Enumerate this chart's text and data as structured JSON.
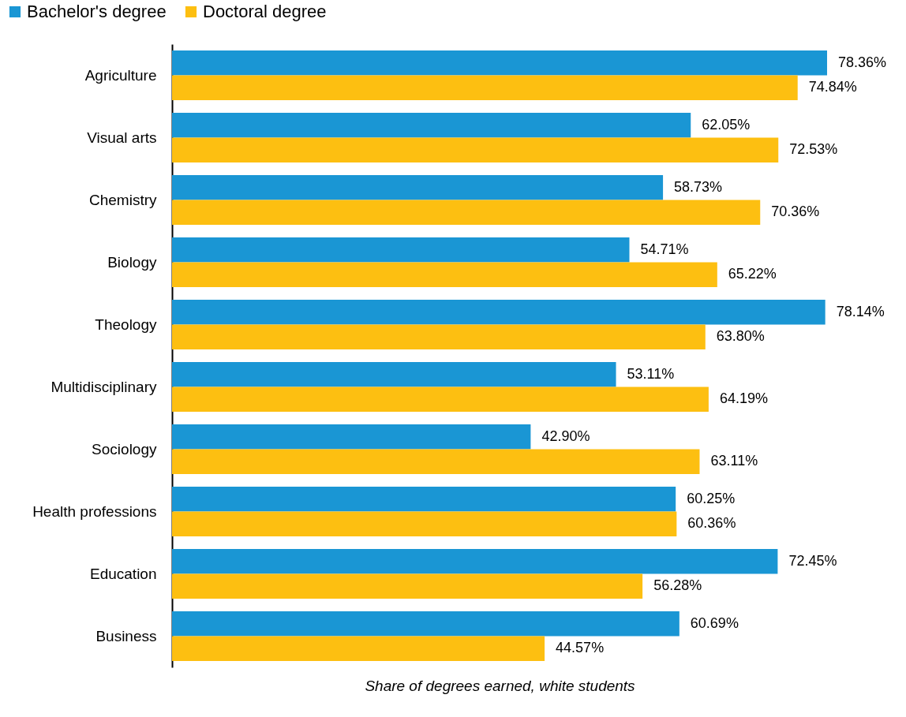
{
  "chart_data": {
    "type": "bar",
    "orientation": "horizontal",
    "xlabel": "Share of degrees earned, white students",
    "categories": [
      "Agriculture",
      "Visual arts",
      "Chemistry",
      "Biology",
      "Theology",
      "Multidisciplinary",
      "Sociology",
      "Health professions",
      "Education",
      "Business"
    ],
    "series": [
      {
        "name": "Bachelor's degree",
        "color": "#1a96d4",
        "values": [
          78.36,
          62.05,
          58.73,
          54.71,
          78.14,
          53.11,
          42.9,
          60.25,
          72.45,
          60.69
        ],
        "value_labels": [
          "78.36%",
          "62.05%",
          "58.73%",
          "54.71%",
          "78.14%",
          "53.11%",
          "42.90%",
          "60.25%",
          "72.45%",
          "60.69%"
        ]
      },
      {
        "name": "Doctoral degree",
        "color": "#fdbf11",
        "values": [
          74.84,
          72.53,
          70.36,
          65.22,
          63.8,
          64.19,
          63.11,
          60.36,
          56.28,
          44.57
        ],
        "value_labels": [
          "74.84%",
          "72.53%",
          "70.36%",
          "65.22%",
          "63.80%",
          "64.19%",
          "63.11%",
          "60.36%",
          "56.28%",
          "44.57%"
        ]
      }
    ],
    "tick_labels": "y",
    "legend": "top left"
  }
}
